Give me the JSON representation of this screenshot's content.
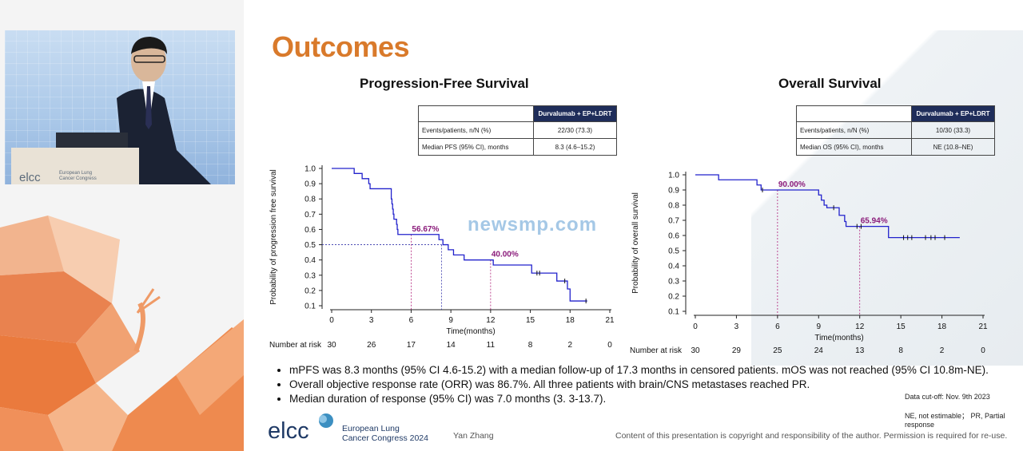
{
  "slide": {
    "title": "Outcomes",
    "bullets": [
      "mPFS was 8.3 months (95% CI 4.6-15.2)  with a median follow-up of 17.3 months in censored patients. mOS was not reached (95% CI 10.8m-NE).",
      "Overall objective response rate (ORR) was 86.7%. All three patients with brain/CNS metastases reached PR.",
      "Median duration of response (95% CI) was 7.0 months (3. 3-13.7)."
    ],
    "data_cutoff": "Data cut-off: Nov. 9th 2023",
    "abbreviations": "NE, not estimable； PR, Partial response",
    "logo_text": "elcc",
    "logo_sub_1": "European Lung",
    "logo_sub_2": "Cancer Congress 2024",
    "author": "Yan Zhang",
    "copyright": "Content of this presentation is copyright and responsibility of the author. Permission is required for re-use.",
    "watermark": "newsmp.com"
  },
  "video": {
    "podium_text": "elcc",
    "podium_sub_1": "European Lung",
    "podium_sub_2": "Cancer Congress"
  },
  "pfs_table": {
    "header": "Durvalumab + EP+LDRT",
    "rows": [
      {
        "label": "Events/patients, n/N (%)",
        "value": "22/30 (73.3)"
      },
      {
        "label": "Median PFS (95% CI), months",
        "value": "8.3 (4.6–15.2)"
      }
    ]
  },
  "os_table": {
    "header": "Durvalumab + EP+LDRT",
    "rows": [
      {
        "label": "Events/patients, n/N (%)",
        "value": "10/30 (33.3)"
      },
      {
        "label": "Median OS (95% CI), months",
        "value": "NE (10.8–NE)"
      }
    ]
  },
  "chart_data": [
    {
      "type": "line",
      "title": "Progression-Free Survival",
      "xlabel": "Time(months)",
      "ylabel": "Probability of progression free survival",
      "xlim": [
        0,
        21
      ],
      "ylim": [
        0.1,
        1.0
      ],
      "xticks": [
        0,
        3,
        6,
        9,
        12,
        15,
        18,
        21
      ],
      "yticks": [
        0.1,
        0.2,
        0.3,
        0.4,
        0.5,
        0.6,
        0.7,
        0.8,
        0.9,
        1.0
      ],
      "series": [
        {
          "color": "#2222cc",
          "steps": [
            [
              0,
              1.0
            ],
            [
              1.7,
              0.967
            ],
            [
              2.3,
              0.933
            ],
            [
              2.8,
              0.9
            ],
            [
              2.9,
              0.867
            ],
            [
              4.5,
              0.833
            ],
            [
              4.5,
              0.8
            ],
            [
              4.55,
              0.767
            ],
            [
              4.6,
              0.733
            ],
            [
              4.65,
              0.7
            ],
            [
              4.7,
              0.667
            ],
            [
              4.9,
              0.633
            ],
            [
              4.95,
              0.6
            ],
            [
              5.0,
              0.567
            ],
            [
              8.1,
              0.533
            ],
            [
              8.4,
              0.5
            ],
            [
              8.8,
              0.467
            ],
            [
              9.2,
              0.433
            ],
            [
              10.0,
              0.4
            ],
            [
              12.2,
              0.367
            ],
            [
              15.1,
              0.314
            ],
            [
              17.0,
              0.262
            ],
            [
              17.8,
              0.21
            ],
            [
              18.0,
              0.131
            ],
            [
              19.3,
              0.131
            ]
          ],
          "censored": [
            [
              15.5,
              0.314
            ],
            [
              15.7,
              0.314
            ],
            [
              17.6,
              0.262
            ],
            [
              19.2,
              0.131
            ]
          ]
        }
      ],
      "annotations": [
        {
          "text": "56.67%",
          "x": 6,
          "y": 0.567
        },
        {
          "text": "40.00%",
          "x": 12,
          "y": 0.4
        }
      ],
      "median_x": 8.3,
      "median_y": 0.5,
      "risk_label": "Number at risk",
      "number_at_risk": [
        "30",
        "26",
        "17",
        "14",
        "11",
        "8",
        "2",
        "0"
      ]
    },
    {
      "type": "line",
      "title": "Overall Survival",
      "xlabel": "Time(months)",
      "ylabel": "Probability of overall survival",
      "xlim": [
        0,
        21
      ],
      "ylim": [
        0.1,
        1.0
      ],
      "xticks": [
        0,
        3,
        6,
        9,
        12,
        15,
        18,
        21
      ],
      "yticks": [
        0.1,
        0.2,
        0.3,
        0.4,
        0.5,
        0.6,
        0.7,
        0.8,
        0.9,
        1.0
      ],
      "series": [
        {
          "color": "#2222cc",
          "steps": [
            [
              0,
              1.0
            ],
            [
              1.7,
              0.967
            ],
            [
              4.5,
              0.933
            ],
            [
              4.8,
              0.9
            ],
            [
              9.0,
              0.867
            ],
            [
              9.2,
              0.833
            ],
            [
              9.4,
              0.8
            ],
            [
              9.6,
              0.783
            ],
            [
              10.5,
              0.733
            ],
            [
              10.9,
              0.692
            ],
            [
              11.0,
              0.66
            ],
            [
              14.1,
              0.586
            ],
            [
              19.3,
              0.586
            ]
          ],
          "censored": [
            [
              4.9,
              0.9
            ],
            [
              10.1,
              0.783
            ],
            [
              11.8,
              0.66
            ],
            [
              12.1,
              0.66
            ],
            [
              15.2,
              0.586
            ],
            [
              15.5,
              0.586
            ],
            [
              15.8,
              0.586
            ],
            [
              16.8,
              0.586
            ],
            [
              17.2,
              0.586
            ],
            [
              17.5,
              0.586
            ],
            [
              18.2,
              0.586
            ]
          ]
        }
      ],
      "annotations": [
        {
          "text": "90.00%",
          "x": 6,
          "y": 0.9
        },
        {
          "text": "65.94%",
          "x": 12,
          "y": 0.6594
        }
      ],
      "risk_label": "Number at risk",
      "number_at_risk": [
        "30",
        "29",
        "25",
        "24",
        "13",
        "8",
        "2",
        "0"
      ]
    }
  ]
}
